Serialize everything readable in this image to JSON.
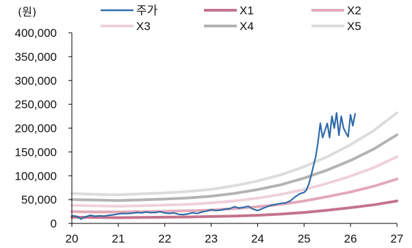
{
  "chart_data": {
    "type": "line",
    "unit_label": "(원)",
    "x_tick_labels": [
      "20",
      "21",
      "22",
      "23",
      "24",
      "25",
      "26",
      "27"
    ],
    "y_tick_labels": [
      "400,000",
      "350,000",
      "300,000",
      "250,000",
      "200,000",
      "150,000",
      "100,000",
      "50,000",
      "0"
    ],
    "x_ticks": [
      20,
      21,
      22,
      23,
      24,
      25,
      26,
      27
    ],
    "y_ticks": [
      400000,
      350000,
      300000,
      250000,
      200000,
      150000,
      100000,
      50000,
      0
    ],
    "xlim": [
      20,
      27
    ],
    "ylim": [
      0,
      400000
    ],
    "grid": false,
    "legend": "top",
    "series": [
      {
        "name": "주가",
        "color": "#2e6aa8",
        "x": [
          20.0,
          20.1,
          20.2,
          20.25,
          20.3,
          20.4,
          20.5,
          20.6,
          20.7,
          20.8,
          20.9,
          21.0,
          21.1,
          21.2,
          21.3,
          21.4,
          21.5,
          21.6,
          21.7,
          21.8,
          21.9,
          22.0,
          22.1,
          22.2,
          22.3,
          22.4,
          22.5,
          22.6,
          22.7,
          22.8,
          22.9,
          23.0,
          23.1,
          23.2,
          23.3,
          23.4,
          23.5,
          23.6,
          23.7,
          23.8,
          23.9,
          24.0,
          24.1,
          24.2,
          24.3,
          24.4,
          24.5,
          24.6,
          24.7,
          24.8,
          24.9,
          25.0,
          25.05,
          25.1,
          25.15,
          25.2,
          25.25,
          25.3,
          25.35,
          25.4,
          25.45,
          25.5,
          25.55,
          25.6,
          25.65,
          25.7,
          25.75,
          25.8,
          25.85,
          25.9,
          25.95,
          26.0,
          26.05,
          26.1
        ],
        "values": [
          16000,
          15000,
          9000,
          12000,
          14000,
          17000,
          15000,
          16000,
          15500,
          17000,
          18000,
          20000,
          21000,
          20500,
          21500,
          23000,
          22000,
          24000,
          22500,
          23000,
          24500,
          22000,
          21000,
          22000,
          19000,
          18500,
          20000,
          22500,
          21000,
          24000,
          26000,
          29000,
          27000,
          28000,
          30000,
          31000,
          35000,
          32000,
          34000,
          36000,
          30000,
          27000,
          31000,
          35000,
          38000,
          40000,
          42000,
          43000,
          47000,
          55000,
          62000,
          65000,
          70000,
          82000,
          100000,
          120000,
          140000,
          170000,
          210000,
          180000,
          195000,
          210000,
          180000,
          225000,
          200000,
          232000,
          185000,
          225000,
          200000,
          190000,
          182000,
          228000,
          205000,
          230000
        ]
      },
      {
        "name": "X1",
        "color": "#c4738b",
        "x": [
          20,
          20.5,
          21,
          21.5,
          22,
          22.5,
          23,
          23.5,
          24,
          24.5,
          25,
          25.5,
          26,
          26.5,
          27
        ],
        "values": [
          13000,
          12500,
          12000,
          12500,
          13000,
          13500,
          14500,
          15500,
          17000,
          19500,
          23000,
          27500,
          33000,
          39000,
          47000
        ]
      },
      {
        "name": "X2",
        "color": "#e2a9b8",
        "x": [
          20,
          20.5,
          21,
          21.5,
          22,
          22.5,
          23,
          23.5,
          24,
          24.5,
          25,
          25.5,
          26,
          26.5,
          27
        ],
        "values": [
          25000,
          24000,
          24000,
          24500,
          25500,
          26500,
          28000,
          31000,
          35000,
          40000,
          47000,
          56000,
          66000,
          78000,
          93000
        ]
      },
      {
        "name": "X3",
        "color": "#f0d1d9",
        "x": [
          20,
          20.5,
          21,
          21.5,
          22,
          22.5,
          23,
          23.5,
          24,
          24.5,
          25,
          25.5,
          26,
          26.5,
          27
        ],
        "values": [
          38000,
          37000,
          36000,
          37000,
          38500,
          40000,
          43000,
          47000,
          53000,
          61000,
          71000,
          84000,
          99000,
          117000,
          140000
        ]
      },
      {
        "name": "X4",
        "color": "#b3b3b3",
        "x": [
          20,
          20.5,
          21,
          21.5,
          22,
          22.5,
          23,
          23.5,
          24,
          24.5,
          25,
          25.5,
          26,
          26.5,
          27
        ],
        "values": [
          50000,
          49000,
          48000,
          49500,
          51000,
          53500,
          57000,
          63000,
          71000,
          81000,
          95000,
          112000,
          132000,
          156000,
          186000
        ]
      },
      {
        "name": "X5",
        "color": "#dcdcdc",
        "x": [
          20,
          20.5,
          21,
          21.5,
          22,
          22.5,
          23,
          23.5,
          24,
          24.5,
          25,
          25.5,
          26,
          26.5,
          27
        ],
        "values": [
          63000,
          61000,
          60000,
          62000,
          64000,
          67000,
          71500,
          79000,
          89000,
          102000,
          119000,
          140000,
          165000,
          195000,
          232000
        ]
      }
    ]
  }
}
